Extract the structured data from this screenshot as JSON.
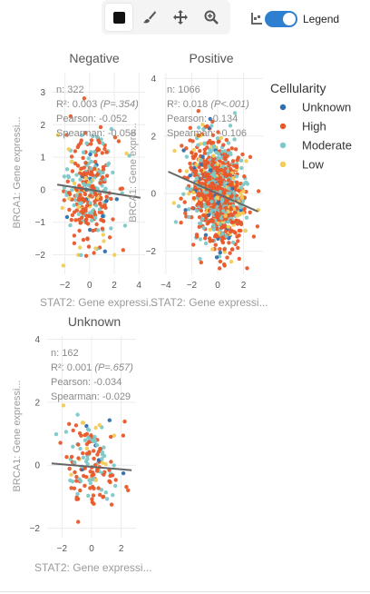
{
  "toolbar": {
    "tools": [
      {
        "name": "select-tool",
        "icon": "square-icon",
        "active": true
      },
      {
        "name": "brush-tool",
        "icon": "brush-icon",
        "active": false
      },
      {
        "name": "pan-tool",
        "icon": "move-icon",
        "active": false
      },
      {
        "name": "zoom-tool",
        "icon": "zoom-icon",
        "active": false
      }
    ]
  },
  "legend_toggle": {
    "label": "Legend",
    "on": true,
    "icon": "layers-icon"
  },
  "colors": {
    "Unknown": "#2f6fb0",
    "High": "#e8592a",
    "Moderate": "#7ec8c8",
    "Low": "#f2cc55",
    "fit_line": "#666666",
    "grid": "#ececec"
  },
  "chart_data": {
    "type": "scatter",
    "facet_by": "",
    "legend": {
      "title": "Cellularity",
      "entries": [
        "Unknown",
        "High",
        "Moderate",
        "Low"
      ],
      "placement": "right"
    },
    "panels": [
      {
        "title": "Negative",
        "xlabel": "STAT2: Gene expressi...",
        "ylabel": "BRCA1: Gene expressi...",
        "xlim": [
          -3,
          4.5
        ],
        "ylim": [
          -2.6,
          3.6
        ],
        "xticks": [
          -2,
          0,
          2,
          4
        ],
        "yticks": [
          -2,
          -1,
          0,
          1,
          2,
          3
        ],
        "stats": {
          "n": "n: 322",
          "r2": "R²: 0.003",
          "p": "(P=.354)",
          "pearson": "Pearson: -0.052",
          "spearman": "Spearman: -0.058"
        },
        "fit": {
          "slope": -0.06,
          "intercept": 0.0
        },
        "n_points": 322,
        "center": [
          0.0,
          0.0
        ],
        "spread": [
          1.0,
          0.85
        ]
      },
      {
        "title": "Positive",
        "xlabel": "STAT2: Gene expressi...",
        "ylabel": "BRCA1: Gene expre...",
        "xlim": [
          -4.2,
          3.5
        ],
        "ylim": [
          -2.8,
          4.2
        ],
        "xticks": [
          -4,
          -2,
          0,
          2
        ],
        "yticks": [
          -2,
          0,
          2,
          4
        ],
        "stats": {
          "n": "n: 1066",
          "r2": "R²: 0.018",
          "p": "(P<.001)",
          "pearson": "Pearson: -0.134",
          "spearman": "Spearman: -0.106"
        },
        "fit": {
          "slope": -0.2,
          "intercept": 0.0
        },
        "n_points": 1066,
        "center": [
          0.0,
          0.0
        ],
        "spread": [
          1.0,
          0.9
        ]
      },
      {
        "title": "Unknown",
        "xlabel": "STAT2: Gene expressi...",
        "ylabel": "BRCA1: Gene expressi...",
        "xlim": [
          -3,
          3
        ],
        "ylim": [
          -2.3,
          4.1
        ],
        "xticks": [
          -2,
          0,
          2
        ],
        "yticks": [
          -2,
          0,
          2,
          4
        ],
        "stats": {
          "n": "n: 162",
          "r2": "R²: 0.001",
          "p": "(P=.657)",
          "pearson": "Pearson: -0.034",
          "spearman": "Spearman: -0.029"
        },
        "fit": {
          "slope": -0.04,
          "intercept": -0.05
        },
        "n_points": 162,
        "center": [
          0.0,
          0.0
        ],
        "spread": [
          0.9,
          0.85
        ]
      }
    ]
  }
}
